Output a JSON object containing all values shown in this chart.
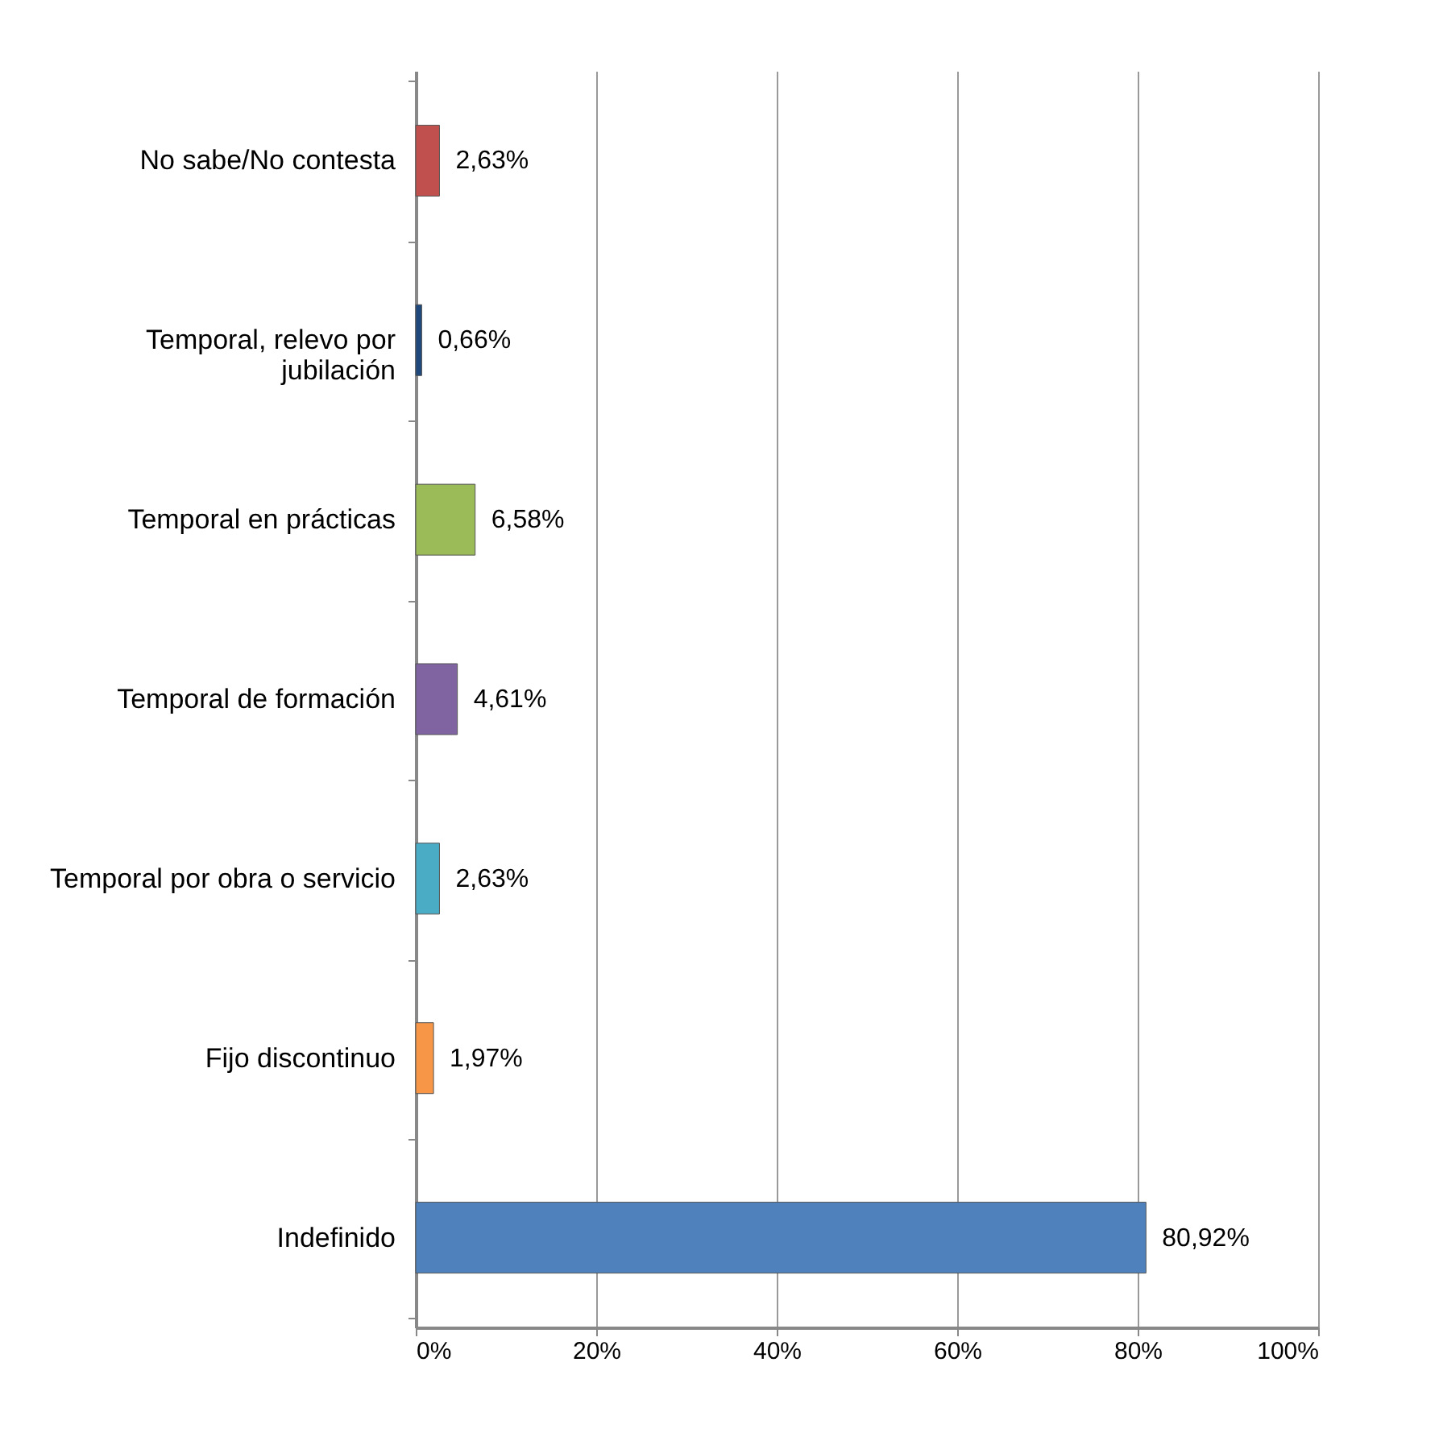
{
  "chart_data": {
    "type": "bar",
    "orientation": "horizontal",
    "categories": [
      "No sabe/No contesta",
      "Temporal, relevo por jubilación",
      "Temporal en prácticas",
      "Temporal de formación",
      "Temporal por obra o servicio",
      "Fijo discontinuo",
      "Indefinido"
    ],
    "values": [
      2.63,
      0.66,
      6.58,
      4.61,
      2.63,
      1.97,
      80.92
    ],
    "colors": [
      "#c0504d",
      "#1f497d",
      "#9bbb59",
      "#8064a2",
      "#4bacc6",
      "#f79646",
      "#4f81bd"
    ],
    "value_labels": [
      "2,63%",
      "0,66%",
      "6,58%",
      "4,61%",
      "2,63%",
      "1,97%",
      "80,92%"
    ],
    "xlim": [
      0,
      100
    ],
    "xticks": [
      {
        "value": 0,
        "label": "0%"
      },
      {
        "value": 20,
        "label": "20%"
      },
      {
        "value": 40,
        "label": "40%"
      },
      {
        "value": 60,
        "label": "60%"
      },
      {
        "value": 80,
        "label": "80%"
      },
      {
        "value": 100,
        "label": "100%"
      }
    ],
    "grid": "x"
  }
}
